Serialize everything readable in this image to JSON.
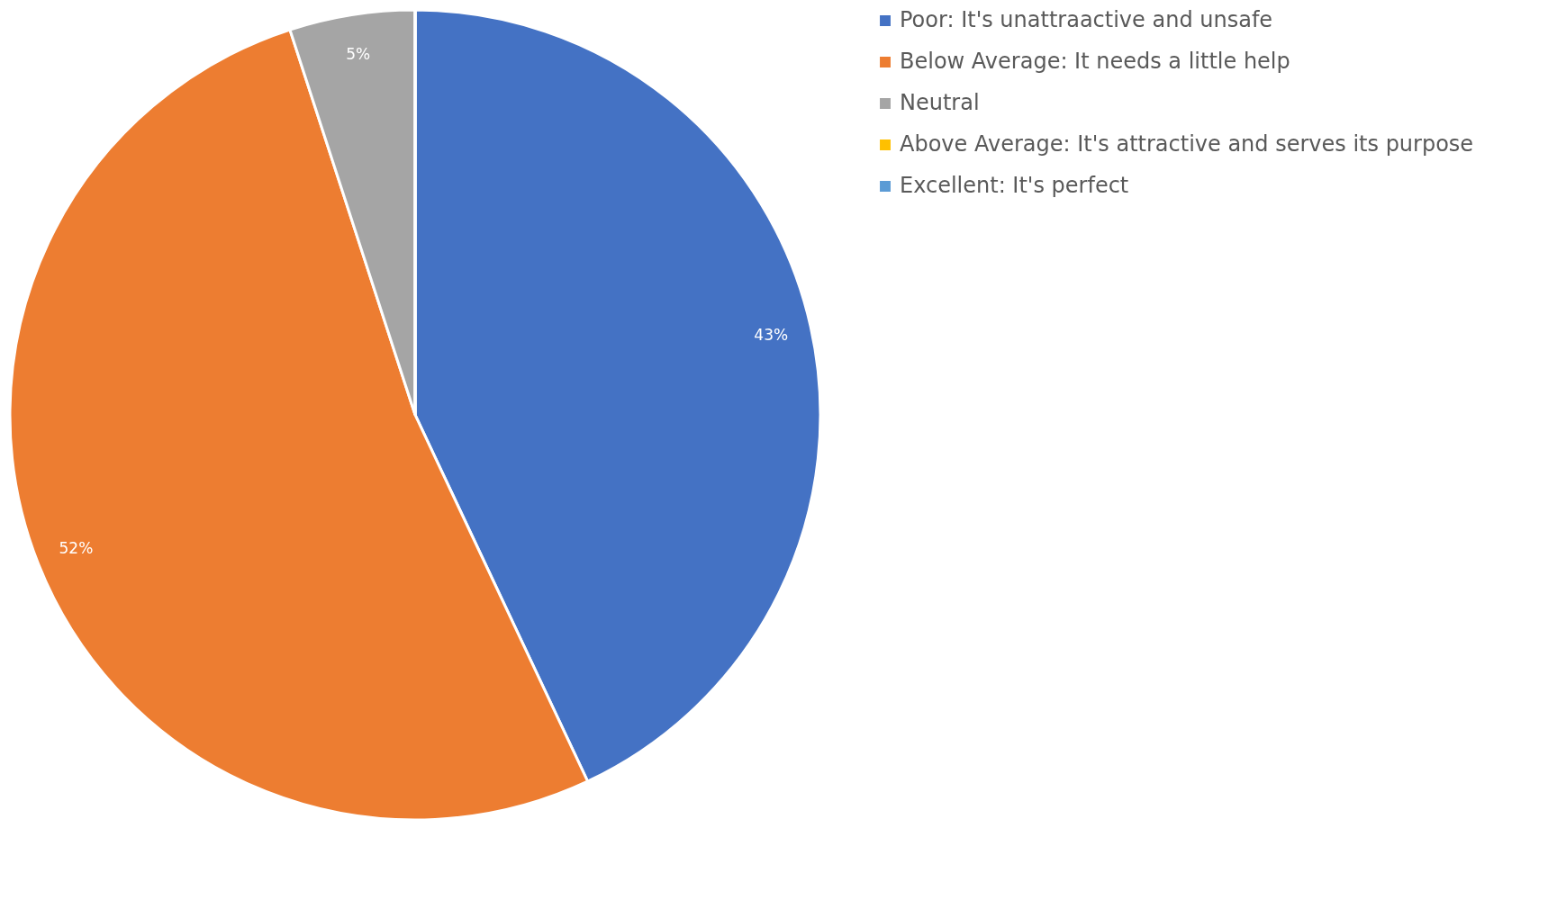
{
  "chart_data": {
    "type": "pie",
    "categories": [
      "Poor: It's unattraactive and unsafe",
      "Below Average: It needs a little help",
      "Neutral",
      "Above Average: It's attractive and serves its purpose",
      "Excellent: It's perfect"
    ],
    "values": [
      43,
      52,
      5,
      0,
      0
    ],
    "colors": [
      "#4472c4",
      "#ed7d31",
      "#a5a5a5",
      "#ffc000",
      "#5b9bd5"
    ],
    "value_labels": [
      "43%",
      "52%",
      "5%",
      null,
      null
    ],
    "legend": "right"
  }
}
